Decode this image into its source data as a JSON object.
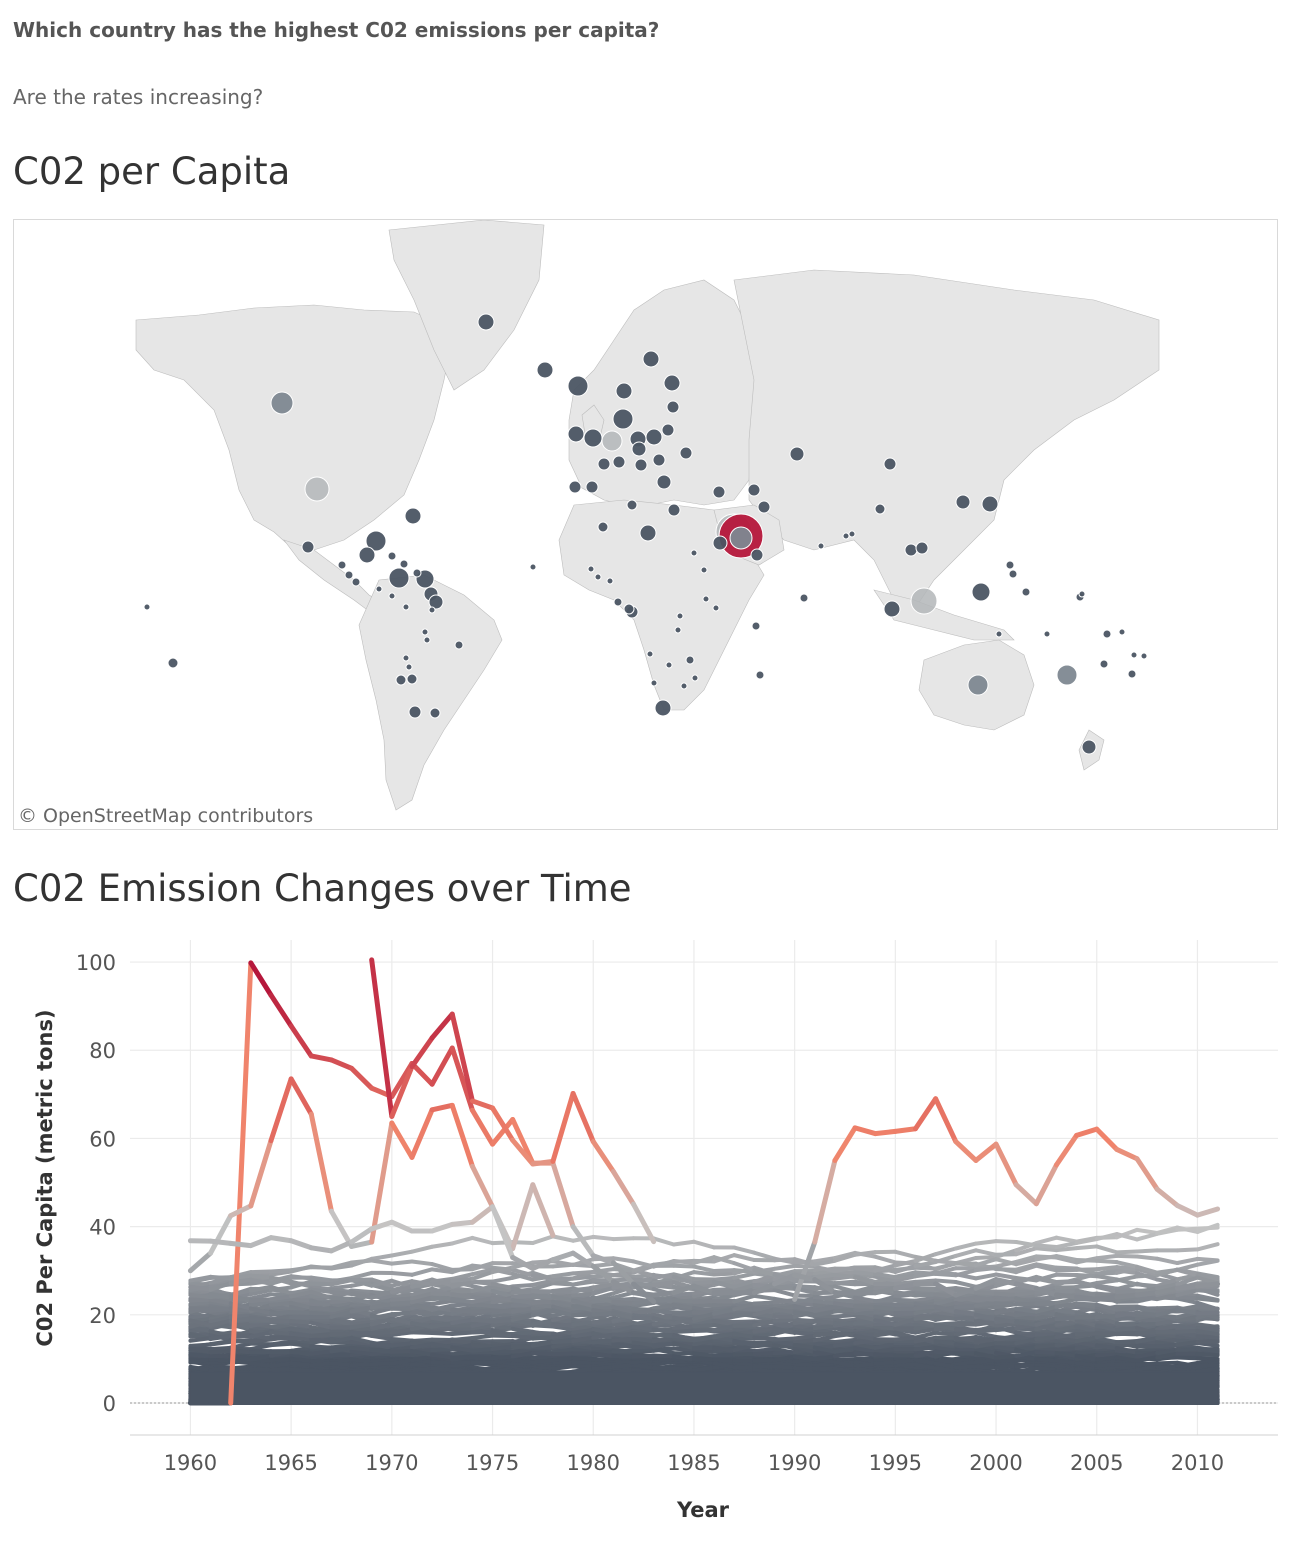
{
  "header": {
    "question": "Which country has the highest C02 emissions per capita?",
    "subquestion": "Are the rates increasing?"
  },
  "map": {
    "title": "C02 per Capita",
    "attribution": "© OpenStreetMap contributors",
    "colors": {
      "land": "#e6e6e6",
      "border": "#a8a8a8",
      "marker_dark": "#4b5563",
      "marker_mid": "#7e8891",
      "marker_light": "#b3b6b8",
      "marker_highlight": "#b5173b"
    }
  },
  "chart_data": {
    "type": "line",
    "title": "C02 Emission Changes over Time",
    "xlabel": "Year",
    "ylabel": "C02 Per Capita (metric tons)",
    "xlim": [
      1957,
      2014
    ],
    "ylim": [
      0,
      105
    ],
    "x_ticks": [
      1960,
      1965,
      1970,
      1975,
      1980,
      1985,
      1990,
      1995,
      2000,
      2005,
      2010
    ],
    "y_ticks": [
      0,
      20,
      40,
      60,
      80,
      100
    ],
    "grid": true,
    "color_scale": {
      "low": "#4b5563",
      "mid": "#c4c4c4",
      "high_mid": "#f0846b",
      "high": "#b5173b"
    },
    "highlight_series": [
      {
        "years": [
          1960,
          1961,
          1962,
          1963,
          1964,
          1965,
          1966,
          1967,
          1968,
          1969,
          1970,
          1971,
          1972,
          1973,
          1974,
          1975,
          1976,
          1977,
          1978,
          1979,
          1980,
          1981,
          1982,
          1983
        ],
        "values": [
          0,
          0,
          0,
          99.8,
          92.5,
          85.5,
          78.7,
          77.8,
          75.9,
          71.4,
          69.5,
          77,
          72.3,
          80.5,
          66.4,
          58.7,
          64.3,
          54.4,
          54.4,
          40,
          33.4,
          31.8,
          27,
          23
        ]
      },
      {
        "years": [
          1969,
          1970,
          1971,
          1972,
          1973,
          1974,
          1975,
          1976,
          1977,
          1978,
          1979,
          1980,
          1981,
          1982,
          1983
        ],
        "values": [
          100.5,
          65,
          76.3,
          82.8,
          88.2,
          68.5,
          66.9,
          59.6,
          54.2,
          54.8,
          70.2,
          59.3,
          52.5,
          45.1,
          36.6
        ]
      },
      {
        "years": [
          1960,
          1961,
          1962,
          1963,
          1964,
          1965,
          1966,
          1967,
          1968,
          1969,
          1970,
          1971,
          1972,
          1973,
          1974,
          1975,
          1976,
          1977,
          1978
        ],
        "values": [
          30,
          34,
          42.5,
          44.7,
          59.5,
          73.5,
          65.5,
          43.5,
          35.5,
          36.5,
          63.5,
          55.7,
          66.5,
          67.5,
          53.7,
          44.5,
          35,
          49.5,
          38
        ]
      },
      {
        "years": [
          1990,
          1991,
          1992,
          1993,
          1994,
          1995,
          1996,
          1997,
          1998,
          1999,
          2000,
          2001,
          2002,
          2003,
          2004,
          2005,
          2006,
          2007,
          2008,
          2009,
          2010,
          2011
        ],
        "values": [
          23.5,
          36.5,
          55,
          62.4,
          61.1,
          61.6,
          62.2,
          69,
          59.3,
          55,
          58.7,
          49.5,
          45.2,
          54,
          60.7,
          62.1,
          57.5,
          55.4,
          48.5,
          44.8,
          42.6,
          44
        ]
      },
      {
        "years": [
          1960,
          1961,
          1962,
          1963,
          1964,
          1965,
          1966,
          1967,
          1968,
          1969,
          1970,
          1971,
          1972,
          1973,
          1974,
          1975,
          1976,
          1977,
          1978,
          1979,
          1980,
          1981,
          1982,
          1983,
          1984,
          1985,
          1986,
          1987,
          1988,
          1989,
          1990,
          1991,
          1992,
          1993,
          1994,
          1995,
          1996,
          1997,
          1998,
          1999,
          2000,
          2001,
          2002,
          2003,
          2004,
          2005,
          2006,
          2007,
          2008,
          2009,
          2010,
          2011
        ],
        "values": [
          36.8,
          36.7,
          36.2,
          35.7,
          37.5,
          36.8,
          35.2,
          34.5,
          36.5,
          39.5,
          41,
          39,
          39,
          40.5,
          41,
          44.5,
          33,
          30.5,
          32.5,
          34,
          31,
          27.5,
          25,
          24.5,
          25,
          26.5,
          25,
          25,
          25,
          27,
          29,
          28,
          25,
          25,
          25,
          26,
          27,
          27,
          24.5,
          26,
          28,
          27,
          26,
          24.5,
          24,
          23.5,
          24,
          24.5,
          25,
          26,
          26.5,
          27
        ]
      }
    ],
    "bundle_summary": "Remaining countries: many overlapping lines between 0 and 40 metric tons per capita from 1960 to 2011"
  }
}
